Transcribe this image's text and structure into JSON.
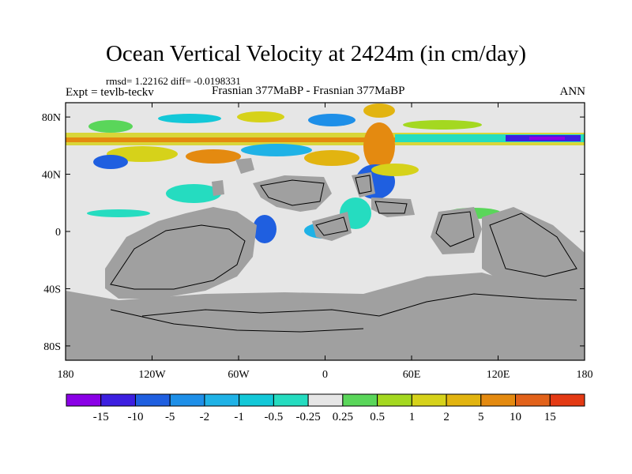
{
  "title": "Ocean Vertical Velocity at 2424m (in cm/day)",
  "stats_line": "rmsd= 1.22162  diff= -0.0198331",
  "experiment": "Expt = tevlb-teckv",
  "comparison": "Frasnian 377MaBP - Frasnian 377MaBP",
  "season": "ANN",
  "axes": {
    "lon_ticks": [
      {
        "value": -180,
        "label": "180"
      },
      {
        "value": -120,
        "label": "120W"
      },
      {
        "value": -60,
        "label": "60W"
      },
      {
        "value": 0,
        "label": "0"
      },
      {
        "value": 60,
        "label": "60E"
      },
      {
        "value": 120,
        "label": "120E"
      },
      {
        "value": 180,
        "label": "180"
      }
    ],
    "lat_ticks": [
      {
        "value": 80,
        "label": "80N"
      },
      {
        "value": 40,
        "label": "40N"
      },
      {
        "value": 0,
        "label": "0"
      },
      {
        "value": -40,
        "label": "40S"
      },
      {
        "value": -80,
        "label": "80S"
      }
    ],
    "lon_range": [
      -180,
      180
    ],
    "lat_range": [
      -90,
      90
    ]
  },
  "colorbar": {
    "colors": [
      "#8a00e6",
      "#3d1fe0",
      "#1f5fe0",
      "#1e8fe8",
      "#1fb2e6",
      "#13c8d8",
      "#25dcc0",
      "#e6e6e6",
      "#5ad65a",
      "#a4d820",
      "#d6d21a",
      "#e2b410",
      "#e48a10",
      "#e2621a",
      "#e43a14"
    ],
    "labels": [
      "-15",
      "-10",
      "-5",
      "-2",
      "-1",
      "-0.5",
      "-0.25",
      "0.25",
      "0.5",
      "1",
      "2",
      "5",
      "10",
      "15"
    ]
  },
  "land_color": "#a0a0a0",
  "ocean_color": "#e6e6e6"
}
